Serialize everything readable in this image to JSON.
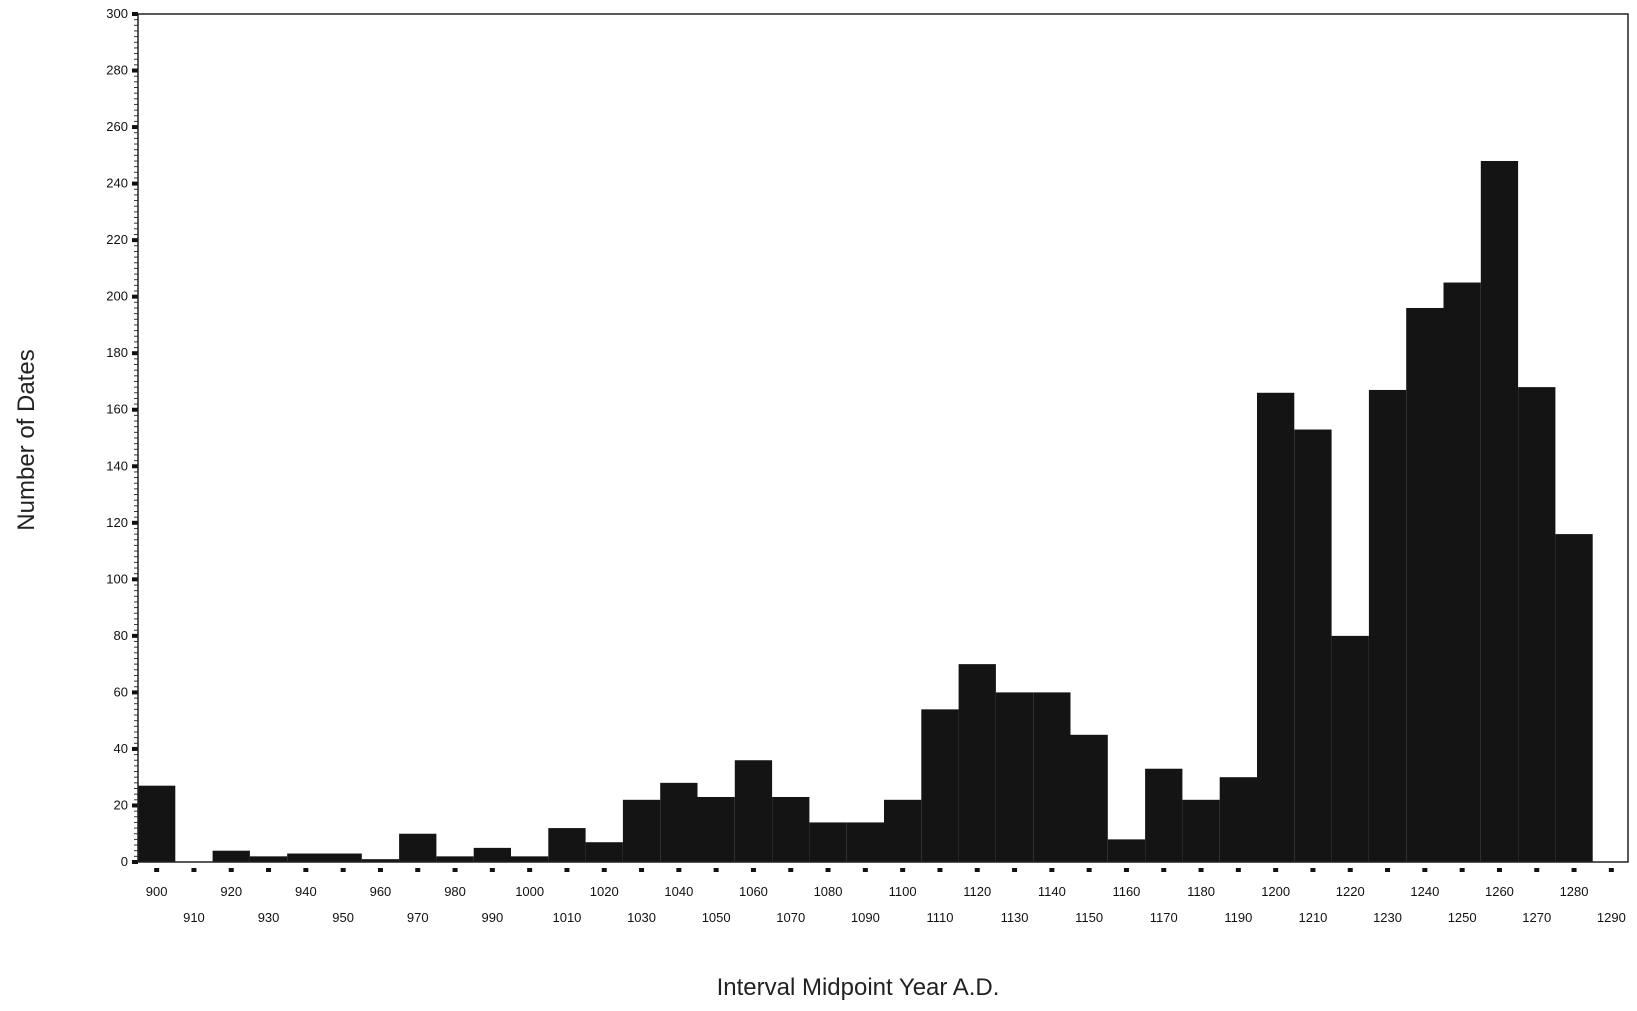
{
  "chart_data": {
    "type": "bar",
    "title": "",
    "xlabel": "Interval Midpoint Year A.D.",
    "ylabel": "Number of Dates",
    "ylim": [
      0,
      300
    ],
    "y_ticks": [
      0,
      20,
      40,
      60,
      80,
      100,
      120,
      140,
      160,
      180,
      200,
      220,
      240,
      260,
      280,
      300
    ],
    "x_tick_labels": [
      "900",
      "910",
      "920",
      "930",
      "940",
      "950",
      "960",
      "970",
      "980",
      "990",
      "1000",
      "1010",
      "1020",
      "1030",
      "1040",
      "1050",
      "1060",
      "1070",
      "1080",
      "1090",
      "1100",
      "1110",
      "1120",
      "1130",
      "1140",
      "1150",
      "1160",
      "1170",
      "1180",
      "1190",
      "1200",
      "1210",
      "1220",
      "1230",
      "1240",
      "1250",
      "1260",
      "1270",
      "1280",
      "1290"
    ],
    "categories": [
      "900",
      "910",
      "920",
      "930",
      "940",
      "950",
      "960",
      "970",
      "980",
      "990",
      "1000",
      "1010",
      "1020",
      "1030",
      "1040",
      "1050",
      "1060",
      "1070",
      "1080",
      "1090",
      "1100",
      "1110",
      "1120",
      "1130",
      "1140",
      "1150",
      "1160",
      "1170",
      "1180",
      "1190",
      "1200",
      "1210",
      "1220",
      "1230",
      "1240",
      "1250",
      "1260",
      "1270",
      "1280"
    ],
    "values": [
      27,
      0,
      4,
      2,
      3,
      3,
      1,
      10,
      2,
      5,
      2,
      12,
      7,
      22,
      28,
      23,
      36,
      23,
      14,
      14,
      22,
      54,
      70,
      60,
      60,
      45,
      8,
      33,
      22,
      30,
      166,
      153,
      80,
      167,
      196,
      205,
      248,
      168,
      116
    ],
    "grid": false,
    "legend": "none",
    "bar_color": "#141414"
  }
}
